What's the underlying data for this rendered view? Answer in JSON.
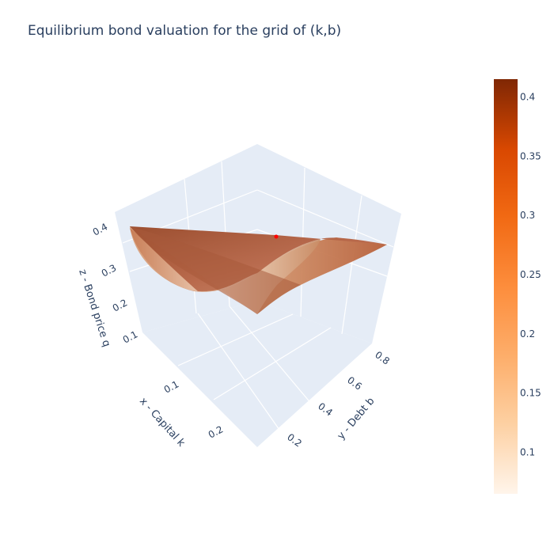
{
  "chart_data": {
    "type": "surface",
    "title": "Equilibrium bond valuation for the grid of (k,b)",
    "colorscale": [
      "#fff5eb",
      "#fdd0a2",
      "#fdae6b",
      "#fd8d3c",
      "#f16913",
      "#d94801",
      "#8c2d04"
    ],
    "scene_background": "#e5ecf6",
    "grid": true,
    "x_axis": {
      "label": "x - Capital k",
      "ticks": [
        "0.1",
        "0.2"
      ],
      "range": [
        0.05,
        0.25
      ]
    },
    "y_axis": {
      "label": "y - Debt b",
      "ticks": [
        "0.2",
        "0.4",
        "0.6",
        "0.8"
      ],
      "range": [
        0.1,
        0.9
      ]
    },
    "z_axis": {
      "label": "z - Bond price q",
      "ticks": [
        "0.1",
        "0.2",
        "0.3",
        "0.4"
      ],
      "range": [
        0.05,
        0.45
      ]
    },
    "colorbar": {
      "ticks": [
        "0.1",
        "0.15",
        "0.2",
        "0.25",
        "0.3",
        "0.35",
        "0.4"
      ],
      "range": [
        0.065,
        0.415
      ]
    },
    "surface_corners": [
      {
        "k": 0.05,
        "b": 0.9,
        "q": 0.41
      },
      {
        "k": 0.05,
        "b": 0.1,
        "q": 0.41
      },
      {
        "k": 0.25,
        "b": 0.1,
        "q": 0.15
      },
      {
        "k": 0.25,
        "b": 0.9,
        "q": 0.33
      }
    ],
    "marker": {
      "k": 0.06,
      "b": 0.3,
      "q": 0.41,
      "color": "#ff0000"
    }
  }
}
